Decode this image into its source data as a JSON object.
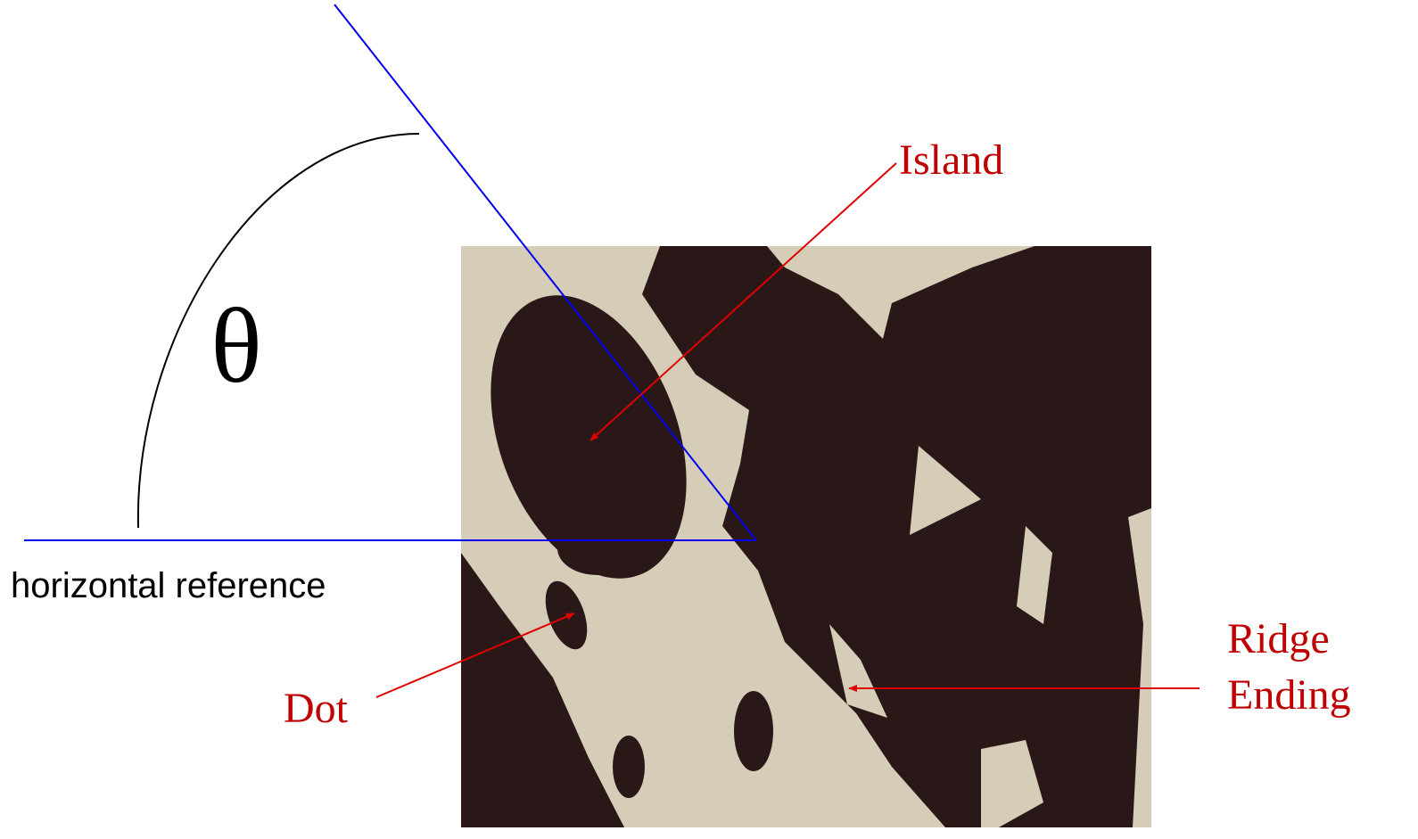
{
  "angle_symbol": "θ",
  "labels": {
    "horizontal_reference": "horizontal reference",
    "island": "Island",
    "dot": "Dot",
    "ridge_ending": [
      "Ridge",
      "Ending"
    ]
  }
}
